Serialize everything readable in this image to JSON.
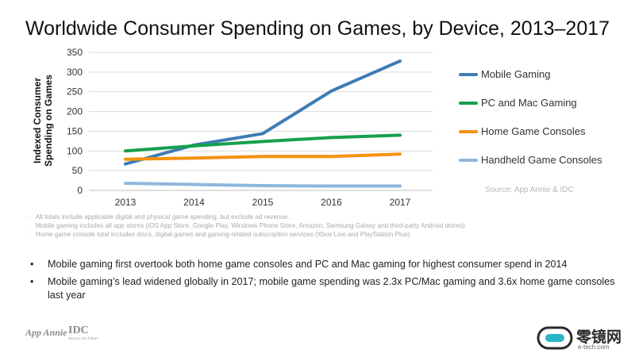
{
  "chart_data": {
    "type": "line",
    "title": "Worldwide Consumer Spending on Games, by Device, 2013–2017",
    "ylabel": "Indexed Consumer Spending on Games",
    "xlabel": "",
    "categories": [
      "2013",
      "2014",
      "2015",
      "2016",
      "2017"
    ],
    "ylim": [
      0,
      350
    ],
    "yticks": [
      0,
      50,
      100,
      150,
      200,
      250,
      300,
      350
    ],
    "grid": "horizontal",
    "legend_position": "right",
    "series": [
      {
        "name": "Mobile Gaming",
        "color": "#3e7cb4",
        "values": [
          67,
          115,
          144,
          252,
          328
        ]
      },
      {
        "name": "PC and Mac Gaming",
        "color": "#16a04c",
        "values": [
          100,
          113,
          124,
          134,
          140
        ]
      },
      {
        "name": "Home Game Consoles",
        "color": "#f4920f",
        "values": [
          79,
          82,
          86,
          86,
          92
        ]
      },
      {
        "name": "Handheld Game Consoles",
        "color": "#8db7dd",
        "values": [
          18,
          15,
          12,
          11,
          11
        ]
      }
    ],
    "source": "Source: App Annie & IDC"
  },
  "notes": [
    "All totals include applicable digital and physical game spending, but exclude ad revenue.",
    "Mobile gaming includes all app stores (iOS App Store, Google Play, Windows Phone Store, Amazon, Samsung Galaxy and third-party Android stores).",
    "Home game console total includes discs, digital games and gaming-related subscription services (Xbox Live and PlayStation Plus)."
  ],
  "bullets": [
    "Mobile gaming first overtook both home game consoles and PC and Mac gaming for highest consumer spend in 2014",
    "Mobile gaming’s lead widened globally in 2017; mobile game spending was 2.3x PC/Mac gaming and 3.6x home game consoles last year"
  ],
  "logos": {
    "app_annie": "App Annie",
    "idc": "IDC",
    "idc_tagline": "Analyze the Future",
    "brand_cn": "零镜网",
    "brand_url": "e-tech.com"
  },
  "colors": {
    "axis": "#bfbfbf",
    "grid": "#d9d9d9"
  }
}
